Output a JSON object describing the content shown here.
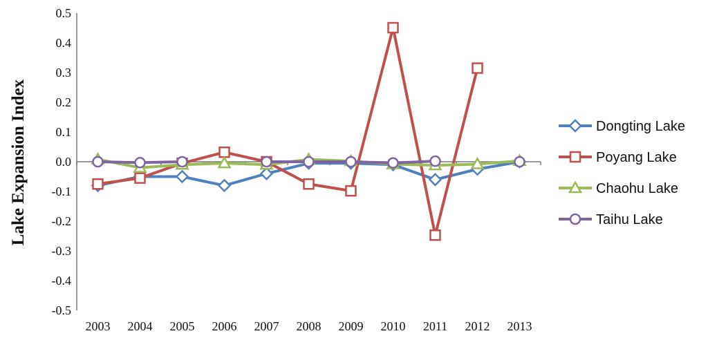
{
  "chart_data": {
    "type": "line",
    "title": "",
    "xlabel": "",
    "ylabel": "Lake Expansion Index",
    "ylim": [
      -0.5,
      0.5
    ],
    "yticks": [
      "0.5",
      "0.4",
      "0.3",
      "0.2",
      "0.1",
      "0.0",
      "-0.1",
      "-0.2",
      "-0.3",
      "-0.4",
      "-0.5"
    ],
    "yticks_values": [
      0.5,
      0.4,
      0.3,
      0.2,
      0.1,
      0.0,
      -0.1,
      -0.2,
      -0.3,
      -0.4,
      -0.5
    ],
    "categories": [
      "2003",
      "2004",
      "2005",
      "2006",
      "2007",
      "2008",
      "2009",
      "2010",
      "2011",
      "2012",
      "2013"
    ],
    "grid": false,
    "legend_position": "right",
    "series": [
      {
        "name": "Dongting Lake",
        "color": "#4F81BD",
        "marker": "diamond",
        "values": [
          -0.08,
          -0.05,
          -0.05,
          -0.08,
          -0.04,
          -0.005,
          -0.005,
          -0.01,
          -0.06,
          -0.025,
          0.0
        ]
      },
      {
        "name": "Poyang Lake",
        "color": "#C0504D",
        "marker": "square",
        "values": [
          -0.075,
          -0.055,
          -0.005,
          0.032,
          0.0,
          -0.075,
          -0.098,
          0.451,
          -0.247,
          0.315,
          null
        ]
      },
      {
        "name": "Chaohu Lake",
        "color": "#9BBB59",
        "marker": "triangle",
        "values": [
          0.008,
          -0.02,
          -0.01,
          -0.005,
          -0.01,
          0.008,
          0.002,
          -0.008,
          -0.012,
          -0.008,
          0.003
        ]
      },
      {
        "name": "Taihu Lake",
        "color": "#8064A2",
        "marker": "circle",
        "values": [
          0.0,
          -0.003,
          0.0,
          null,
          0.0,
          0.0,
          0.0,
          -0.004,
          0.002,
          null,
          0.0
        ]
      }
    ]
  }
}
